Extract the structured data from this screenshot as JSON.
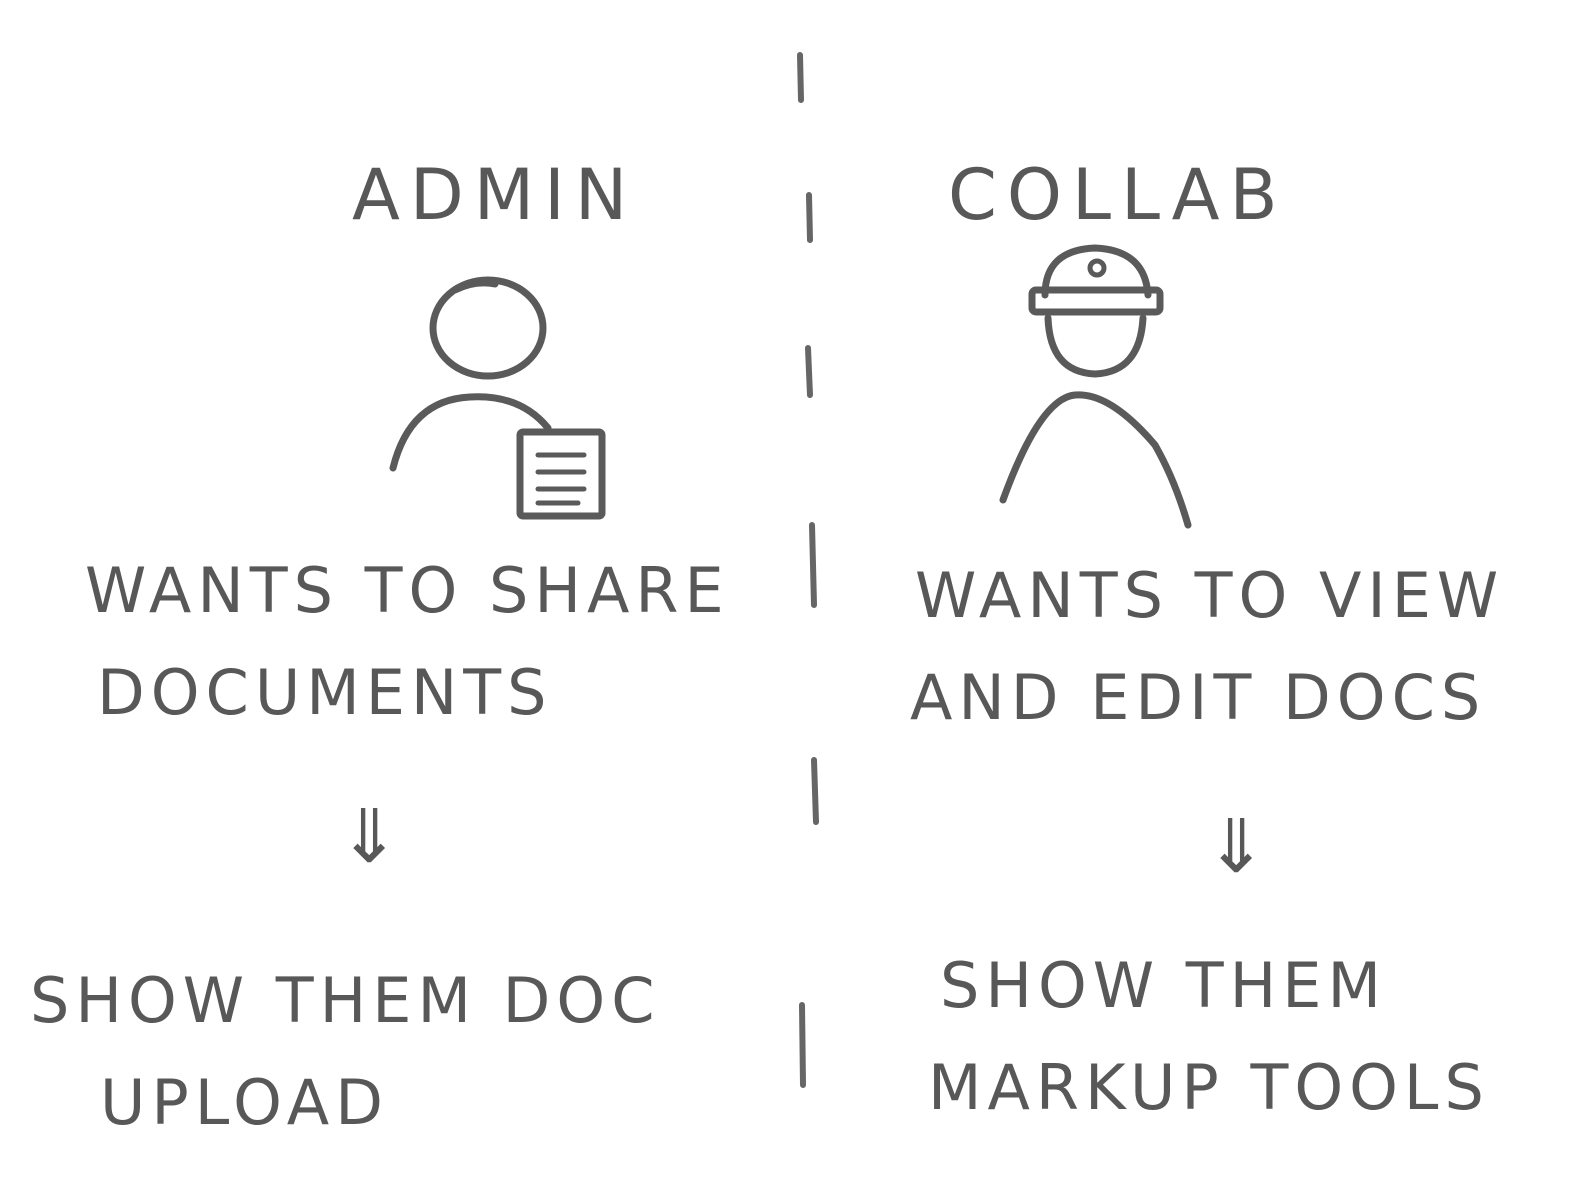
{
  "colors": {
    "ink": "#585858",
    "background": "#ffffff"
  },
  "left": {
    "title": "ADMIN",
    "need": [
      "WANTS TO SHARE",
      "DOCUMENTS"
    ],
    "solution": [
      "SHOW THEM DOC",
      "UPLOAD"
    ],
    "figure_icon": "person-with-document-icon"
  },
  "right": {
    "title": "COLLAB",
    "need": [
      "WANTS TO VIEW",
      "AND EDIT DOCS"
    ],
    "solution": [
      "SHOW THEM",
      "MARKUP TOOLS"
    ],
    "figure_icon": "person-with-hard-hat-icon"
  },
  "arrow_glyph": "⇓"
}
